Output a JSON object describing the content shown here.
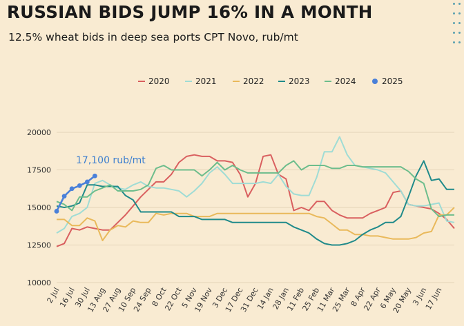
{
  "header": {
    "title": "RUSSIAN BIDS JUMP 16% IN A MONTH",
    "subtitle": "12.5% wheat bids in deep sea ports CPT Novo, rub/mt"
  },
  "chart_data": {
    "type": "line",
    "title": "RUSSIAN BIDS JUMP 16% IN A MONTH",
    "subtitle": "12.5% wheat bids in deep sea ports CPT Novo, rub/mt",
    "xlabel": "",
    "ylabel": "",
    "ylim": [
      10000,
      20000
    ],
    "yticks": [
      10000,
      12500,
      15000,
      17500,
      20000
    ],
    "ytick_labels": [
      "10000",
      "12500",
      "15000",
      "17500",
      "20000"
    ],
    "x_tick_labels": [
      "2 Jul",
      "16 Jul",
      "30 Jul",
      "13 Aug",
      "27 Aug",
      "10 Sep",
      "24 Sep",
      "8 Oct",
      "22 Oct",
      "5 Nov",
      "19 Nov",
      "3 Dec",
      "17 Dec",
      "31 Dec",
      "14 Jan",
      "28 Jan",
      "11 Feb",
      "25 Feb",
      "11 Mar",
      "25 Mar",
      "8 Apr",
      "22 Apr",
      "6 May",
      "20 May",
      "3 Jun",
      "17 Jun"
    ],
    "x_step_note_weeks": 1,
    "grid": true,
    "legend_position": "top",
    "annotation": "17,100 rub/mt",
    "series": [
      {
        "name": "2020",
        "color": "#d95f5f",
        "values": [
          12400,
          12600,
          13600,
          13500,
          13700,
          13600,
          13500,
          13500,
          14000,
          14500,
          15100,
          15700,
          16200,
          16700,
          16700,
          17200,
          18000,
          18400,
          18500,
          18400,
          18400,
          18100,
          18100,
          18000,
          17200,
          15700,
          16600,
          18400,
          18500,
          17200,
          16900,
          14800,
          15000,
          14800,
          15400,
          15400,
          14800,
          14500,
          14300,
          14300,
          14300,
          14600,
          14800,
          15000,
          16000,
          16100,
          15200,
          15100,
          15000,
          14900,
          14600,
          14200,
          13600
        ]
      },
      {
        "name": "2021",
        "color": "#9fdcd5",
        "values": [
          13300,
          13600,
          14400,
          14600,
          15000,
          16600,
          16800,
          16500,
          16300,
          16200,
          16500,
          16700,
          16400,
          16300,
          16300,
          16200,
          16100,
          15700,
          16100,
          16600,
          17300,
          17700,
          17200,
          16600,
          16600,
          16600,
          16600,
          16700,
          16600,
          17200,
          16400,
          15900,
          15800,
          15800,
          17000,
          18700,
          18700,
          19700,
          18500,
          17800,
          17700,
          17600,
          17500,
          17300,
          16700,
          16100,
          15200,
          15100,
          15100,
          15200,
          15300,
          14100,
          14000
        ]
      },
      {
        "name": "2022",
        "color": "#e9b95b",
        "values": [
          14200,
          14200,
          13800,
          13800,
          14300,
          14100,
          12800,
          13500,
          13800,
          13700,
          14100,
          14000,
          14000,
          14600,
          14500,
          14600,
          14600,
          14600,
          14400,
          14400,
          14400,
          14600,
          14600,
          14600,
          14600,
          14600,
          14600,
          14600,
          14600,
          14600,
          14600,
          14600,
          14600,
          14600,
          14400,
          14300,
          13900,
          13500,
          13500,
          13200,
          13200,
          13100,
          13100,
          13000,
          12900,
          12900,
          12900,
          13000,
          13300,
          13400,
          14500,
          14500,
          15000
        ]
      },
      {
        "name": "2023",
        "color": "#1f8a8a",
        "values": [
          15100,
          15000,
          15100,
          15300,
          16500,
          16500,
          16400,
          16400,
          16400,
          15800,
          15500,
          14700,
          14700,
          14700,
          14700,
          14700,
          14400,
          14400,
          14400,
          14200,
          14200,
          14200,
          14200,
          14000,
          14000,
          14000,
          14000,
          14000,
          14000,
          14000,
          14000,
          13700,
          13500,
          13300,
          12900,
          12600,
          12500,
          12500,
          12600,
          12800,
          13200,
          13500,
          13700,
          14000,
          14000,
          14400,
          15700,
          17100,
          18100,
          16800,
          16900,
          16200,
          16200
        ]
      },
      {
        "name": "2024",
        "color": "#6dbd8c",
        "values": [
          15400,
          15200,
          14800,
          15700,
          15700,
          16100,
          16300,
          16500,
          16100,
          16100,
          16100,
          16200,
          16500,
          17600,
          17800,
          17500,
          17500,
          17500,
          17500,
          17100,
          17500,
          18000,
          17500,
          17800,
          17500,
          17300,
          17300,
          17300,
          17300,
          17300,
          17800,
          18100,
          17500,
          17800,
          17800,
          17800,
          17600,
          17600,
          17800,
          17800,
          17700,
          17700,
          17700,
          17700,
          17700,
          17700,
          17400,
          16900,
          16600,
          14900,
          14400,
          14500,
          14500
        ]
      },
      {
        "name": "2025",
        "color": "#4a80d9",
        "values": [
          14750,
          15750,
          16250,
          16450,
          16700,
          17100
        ],
        "markers": true
      }
    ]
  }
}
